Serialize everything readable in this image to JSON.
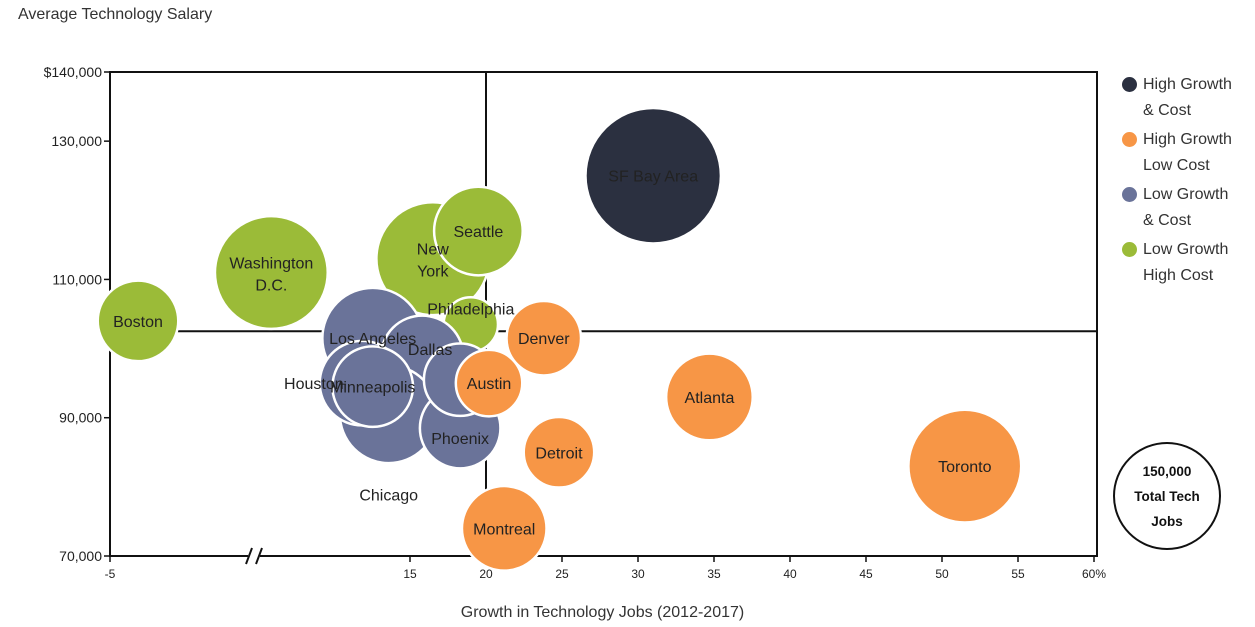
{
  "chart_data": {
    "type": "scatter",
    "title": "",
    "ylabel": "Average Technology Salary",
    "xlabel": "Growth in Technology Jobs (2012-2017)",
    "x_axis": {
      "ticks": [
        -5,
        15,
        20,
        25,
        30,
        35,
        40,
        45,
        50,
        55,
        60
      ],
      "tick_labels": [
        "-5",
        "15",
        "20",
        "25",
        "30",
        "35",
        "40",
        "45",
        "50",
        "55",
        "60%"
      ],
      "axis_break": true
    },
    "y_axis": {
      "range": [
        70000,
        140000
      ],
      "ticks": [
        70000,
        90000,
        110000,
        130000,
        140000
      ],
      "tick_labels": [
        "70,000",
        "90,000",
        "110,000",
        "130,000",
        "$140,000"
      ]
    },
    "divider_lines": {
      "x": 20,
      "y": 102500
    },
    "bubbles": [
      {
        "label": "Washington D.C.",
        "x": 2,
        "y": 111000,
        "category": "Low Growth High Cost",
        "size": 1.0
      },
      {
        "label": "Boston",
        "x": -4,
        "y": 104000,
        "category": "Low Growth High Cost",
        "size": 0.68
      },
      {
        "label": "New York",
        "x": 16.5,
        "y": 113000,
        "category": "Low Growth High Cost",
        "size": 1.0
      },
      {
        "label": "Seattle",
        "x": 19.5,
        "y": 117000,
        "category": "Low Growth High Cost",
        "size": 0.76
      },
      {
        "label": "Philadelphia",
        "x": 19,
        "y": 103500,
        "category": "Low Growth High Cost",
        "size": 0.42
      },
      {
        "label": "Los Angeles",
        "x": 11.5,
        "y": 101500,
        "category": "Low Growth & Cost",
        "size": 0.88
      },
      {
        "label": "Dallas",
        "x": 15.8,
        "y": 98800,
        "category": "Low Growth & Cost",
        "size": 0.7
      },
      {
        "label": "Chicago",
        "x": 13,
        "y": 90500,
        "category": "Low Growth & Cost",
        "size": 0.85
      },
      {
        "label": "Houston",
        "x": 10.5,
        "y": 95000,
        "category": "Low Growth & Cost",
        "size": 0.72
      },
      {
        "label": "Minneapolis",
        "x": 11.5,
        "y": 94500,
        "category": "Low Growth & Cost",
        "size": 0.68
      },
      {
        "label": "Phoenix",
        "x": 18.3,
        "y": 88500,
        "category": "Low Growth & Cost",
        "size": 0.68
      },
      {
        "label": "",
        "x": 18.3,
        "y": 95500,
        "category": "Low Growth & Cost",
        "size": 0.6
      },
      {
        "label": "Austin",
        "x": 20.2,
        "y": 95000,
        "category": "High Growth Low Cost",
        "size": 0.54
      },
      {
        "label": "Denver",
        "x": 23.8,
        "y": 101500,
        "category": "High Growth Low Cost",
        "size": 0.62
      },
      {
        "label": "Detroit",
        "x": 24.8,
        "y": 85000,
        "category": "High Growth Low Cost",
        "size": 0.58
      },
      {
        "label": "Montreal",
        "x": 21.2,
        "y": 74000,
        "category": "High Growth Low Cost",
        "size": 0.72
      },
      {
        "label": "Atlanta",
        "x": 34.7,
        "y": 93000,
        "category": "High Growth Low Cost",
        "size": 0.74
      },
      {
        "label": "Toronto",
        "x": 51.5,
        "y": 83000,
        "category": "High Growth Low Cost",
        "size": 1.0
      },
      {
        "label": "SF Bay Area",
        "x": 31,
        "y": 125000,
        "category": "High Growth & Cost",
        "size": 1.2
      }
    ],
    "legend": {
      "placement": "right",
      "items": [
        {
          "label": "High Growth & Cost",
          "color": "#2b3040"
        },
        {
          "label": "High Growth Low Cost",
          "color": "#f79646"
        },
        {
          "label": "Low Growth & Cost",
          "color": "#6a7399"
        },
        {
          "label": "Low Growth High Cost",
          "color": "#9bbb38"
        }
      ]
    },
    "size_legend": {
      "line1": "150,000",
      "line2": "Total Tech",
      "line3": "Jobs"
    }
  }
}
